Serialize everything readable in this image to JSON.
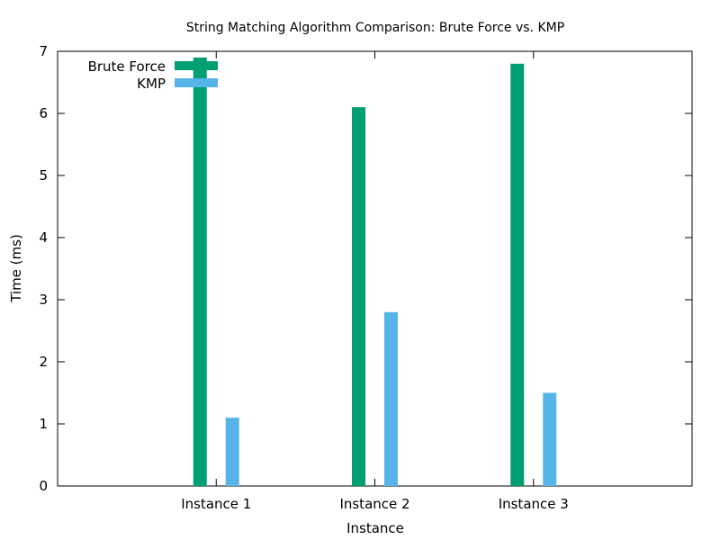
{
  "chart_data": {
    "type": "bar",
    "title": "String Matching Algorithm Comparison: Brute Force vs. KMP",
    "xlabel": "Instance",
    "ylabel": "Time (ms)",
    "categories": [
      "Instance 1",
      "Instance 2",
      "Instance 3"
    ],
    "series": [
      {
        "name": "Brute Force",
        "values": [
          6.9,
          6.1,
          6.8
        ],
        "color": "#009e73"
      },
      {
        "name": "KMP",
        "values": [
          1.1,
          2.8,
          1.5
        ],
        "color": "#56b4e9"
      }
    ],
    "ylim": [
      0,
      7
    ],
    "yticks": [
      "0",
      "1",
      "2",
      "3",
      "4",
      "5",
      "6",
      "7"
    ],
    "grid": false,
    "legend_position": "top-left"
  }
}
